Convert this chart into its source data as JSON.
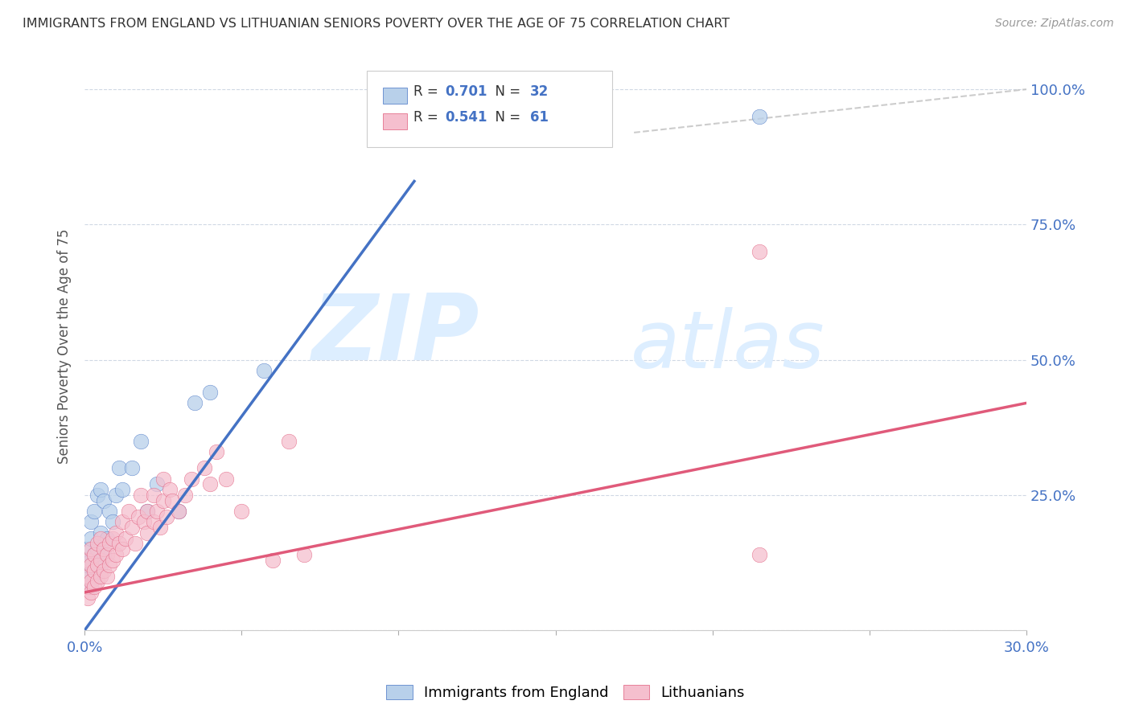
{
  "title": "IMMIGRANTS FROM ENGLAND VS LITHUANIAN SENIORS POVERTY OVER THE AGE OF 75 CORRELATION CHART",
  "source": "Source: ZipAtlas.com",
  "ylabel": "Seniors Poverty Over the Age of 75",
  "xlim": [
    0.0,
    0.3
  ],
  "ylim": [
    0.0,
    1.05
  ],
  "xticks": [
    0.0,
    0.05,
    0.1,
    0.15,
    0.2,
    0.25,
    0.3
  ],
  "xticklabels": [
    "0.0%",
    "",
    "",
    "",
    "",
    "",
    "30.0%"
  ],
  "yticks": [
    0.0,
    0.25,
    0.5,
    0.75,
    1.0
  ],
  "yticklabels": [
    "",
    "25.0%",
    "50.0%",
    "75.0%",
    "100.0%"
  ],
  "r_england": "0.701",
  "n_england": "32",
  "r_lithuanian": "0.541",
  "n_lithuanian": "61",
  "color_england": "#b8d0ea",
  "color_lithuanian": "#f5bfce",
  "line_color_england": "#4472c4",
  "line_color_lithuanian": "#e05a7a",
  "line_color_diagonal": "#c0c0c0",
  "watermark_zip": "ZIP",
  "watermark_atlas": "atlas",
  "watermark_color": "#ddeeff",
  "england_x": [
    0.001,
    0.001,
    0.001,
    0.002,
    0.002,
    0.002,
    0.002,
    0.003,
    0.003,
    0.003,
    0.004,
    0.004,
    0.005,
    0.005,
    0.005,
    0.006,
    0.006,
    0.007,
    0.008,
    0.009,
    0.01,
    0.011,
    0.012,
    0.015,
    0.018,
    0.02,
    0.023,
    0.03,
    0.035,
    0.04,
    0.057,
    0.215
  ],
  "england_y": [
    0.1,
    0.12,
    0.15,
    0.08,
    0.13,
    0.17,
    0.2,
    0.1,
    0.14,
    0.22,
    0.15,
    0.25,
    0.12,
    0.18,
    0.26,
    0.14,
    0.24,
    0.17,
    0.22,
    0.2,
    0.25,
    0.3,
    0.26,
    0.3,
    0.35,
    0.22,
    0.27,
    0.22,
    0.42,
    0.44,
    0.48,
    0.95
  ],
  "lithuanian_x": [
    0.001,
    0.001,
    0.001,
    0.001,
    0.002,
    0.002,
    0.002,
    0.002,
    0.003,
    0.003,
    0.003,
    0.004,
    0.004,
    0.004,
    0.005,
    0.005,
    0.005,
    0.006,
    0.006,
    0.007,
    0.007,
    0.008,
    0.008,
    0.009,
    0.009,
    0.01,
    0.01,
    0.011,
    0.012,
    0.012,
    0.013,
    0.014,
    0.015,
    0.016,
    0.017,
    0.018,
    0.019,
    0.02,
    0.02,
    0.022,
    0.022,
    0.023,
    0.024,
    0.025,
    0.025,
    0.026,
    0.027,
    0.028,
    0.03,
    0.032,
    0.034,
    0.038,
    0.04,
    0.042,
    0.045,
    0.05,
    0.06,
    0.065,
    0.07,
    0.215,
    0.215
  ],
  "lithuanian_y": [
    0.06,
    0.08,
    0.1,
    0.13,
    0.07,
    0.09,
    0.12,
    0.15,
    0.08,
    0.11,
    0.14,
    0.09,
    0.12,
    0.16,
    0.1,
    0.13,
    0.17,
    0.11,
    0.15,
    0.1,
    0.14,
    0.12,
    0.16,
    0.13,
    0.17,
    0.14,
    0.18,
    0.16,
    0.15,
    0.2,
    0.17,
    0.22,
    0.19,
    0.16,
    0.21,
    0.25,
    0.2,
    0.18,
    0.22,
    0.25,
    0.2,
    0.22,
    0.19,
    0.24,
    0.28,
    0.21,
    0.26,
    0.24,
    0.22,
    0.25,
    0.28,
    0.3,
    0.27,
    0.33,
    0.28,
    0.22,
    0.13,
    0.35,
    0.14,
    0.7,
    0.14
  ],
  "england_line_x": [
    0.0,
    0.105
  ],
  "england_line_y": [
    0.0,
    0.83
  ],
  "lithuanian_line_x": [
    0.0,
    0.3
  ],
  "lithuanian_line_y": [
    0.07,
    0.42
  ],
  "diag_line_x": [
    0.175,
    0.3
  ],
  "diag_line_y": [
    0.92,
    1.0
  ]
}
